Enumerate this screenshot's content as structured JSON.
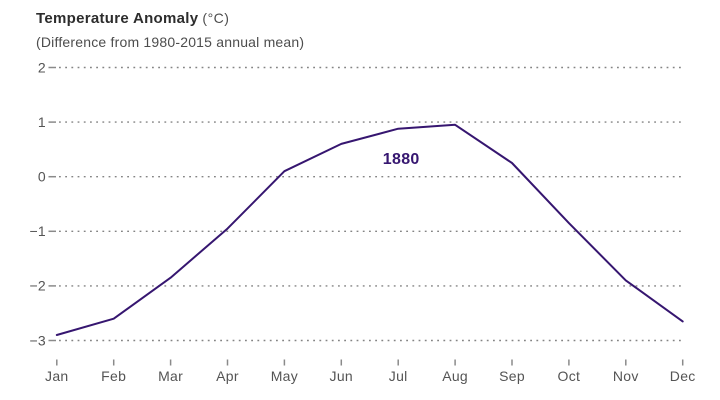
{
  "header": {
    "title": "Temperature Anomaly",
    "unit": "(°C)",
    "subtitle": "(Difference from 1980-2015 annual mean)"
  },
  "chart_data": {
    "type": "line",
    "title": "Temperature Anomaly (°C)",
    "subtitle": "(Difference from 1980-2015 annual mean)",
    "categories": [
      "Jan",
      "Feb",
      "Mar",
      "Apr",
      "May",
      "Jun",
      "Jul",
      "Aug",
      "Sep",
      "Oct",
      "Nov",
      "Dec"
    ],
    "series": [
      {
        "name": "1880",
        "values": [
          -2.9,
          -2.6,
          -1.85,
          -0.95,
          0.1,
          0.6,
          0.88,
          0.95,
          0.25,
          -0.85,
          -1.9,
          -2.65
        ]
      }
    ],
    "series_label": {
      "text": "1880",
      "anchor_month_index": 6,
      "anchor_value": 0.33
    },
    "xlabel": "",
    "ylabel": "",
    "ylim": [
      -3,
      2
    ],
    "yticks": [
      2,
      1,
      0,
      -1,
      -2,
      -3
    ],
    "grid": "horizontal-dotted",
    "legend_position": "inline-series-label",
    "colors": {
      "line": "#361670",
      "series_label": "#361670",
      "grid_dots": "#848484",
      "ticks": "#8a8a8a",
      "axis_labels": "#545454",
      "title": "#2d2d2d",
      "subtitle": "#4d4d4d",
      "background": "#ffffff"
    }
  }
}
